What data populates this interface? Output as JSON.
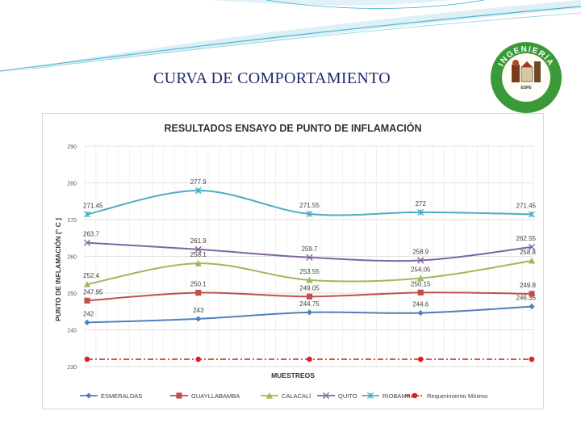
{
  "slide": {
    "title": "CURVA DE COMPORTAMIENTO"
  },
  "logo": {
    "top_text": "INGENIERÍA",
    "bottom_text": "CIVIL",
    "mid_text": "ESPE",
    "ring_color": "#2e8b2e"
  },
  "chart_data": {
    "type": "line",
    "title": "RESULTADOS ENSAYO DE PUNTO DE INFLAMACIÓN",
    "xlabel": "MUESTREOS",
    "ylabel": "PUNTO DE INFLAMACIÓN [° C ]",
    "ylim": [
      230,
      290
    ],
    "yticks": [
      "230",
      "240",
      "250",
      "260",
      "270",
      "280",
      "290"
    ],
    "x": [
      1,
      2,
      3,
      4,
      5
    ],
    "grid": true,
    "legend_position": "bottom",
    "series": [
      {
        "name": "ESMERALDAS",
        "color": "#4f81bd",
        "marker": "diamond",
        "values": [
          242,
          243,
          244.75,
          244.6,
          246.35
        ],
        "labels": [
          "242",
          "243",
          "244.75",
          "244.6",
          "246.35"
        ]
      },
      {
        "name": "GUAYLLABAMBA",
        "color": "#c0504d",
        "marker": "square",
        "values": [
          247.95,
          250.1,
          249.05,
          250.15,
          249.8
        ],
        "labels": [
          "247.95",
          "250.1",
          "249.05",
          "250.15",
          "249.8"
        ]
      },
      {
        "name": "CALACALÍ",
        "color": "#9bbb59",
        "marker": "triangle",
        "values": [
          252.4,
          258.1,
          253.55,
          254.05,
          258.8
        ],
        "labels": [
          "252.4",
          "258.1",
          "253.55",
          "254.05",
          "258.8"
        ]
      },
      {
        "name": "QUITO",
        "color": "#8064a2",
        "marker": "x",
        "values": [
          263.7,
          261.9,
          259.7,
          258.9,
          262.55
        ],
        "labels": [
          "263.7",
          "261.9",
          "259.7",
          "258.9",
          "262.55"
        ]
      },
      {
        "name": "RIOBAMBA",
        "color": "#4bacc6",
        "marker": "star",
        "values": [
          271.45,
          277.9,
          271.55,
          272,
          271.45
        ],
        "labels": [
          "271.45",
          "277.9",
          "271.55",
          "272",
          "271.45"
        ]
      },
      {
        "name": "Requerimiento Mínimo",
        "color": "#e0201b",
        "marker": "circle",
        "dashed": true,
        "values": [
          232,
          232,
          232,
          232,
          232
        ],
        "labels": []
      }
    ]
  }
}
